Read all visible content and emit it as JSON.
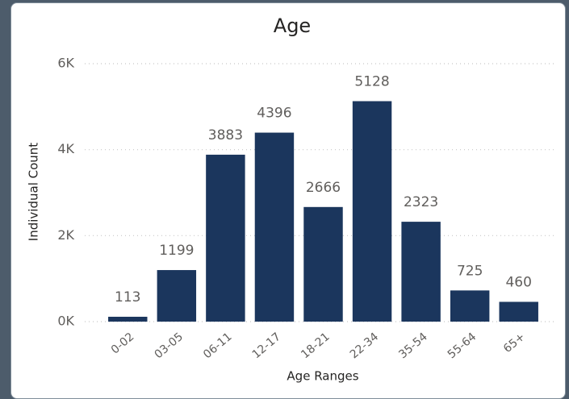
{
  "chart_data": {
    "type": "bar",
    "title": "Age",
    "x_label": "Age Ranges",
    "y_label": "Individual Count",
    "categories": [
      "0-02",
      "03-05",
      "06-11",
      "12-17",
      "18-21",
      "22-34",
      "35-54",
      "55-64",
      "65+"
    ],
    "values": [
      113,
      1199,
      3883,
      4396,
      2666,
      5128,
      2323,
      725,
      460
    ],
    "color": "#1b365d",
    "ylim": [
      0,
      6000
    ],
    "yticks": [
      {
        "value": 0,
        "label": "0K"
      },
      {
        "value": 2000,
        "label": "2K"
      },
      {
        "value": 4000,
        "label": "4K"
      },
      {
        "value": 6000,
        "label": "6K"
      }
    ],
    "grid": true
  }
}
